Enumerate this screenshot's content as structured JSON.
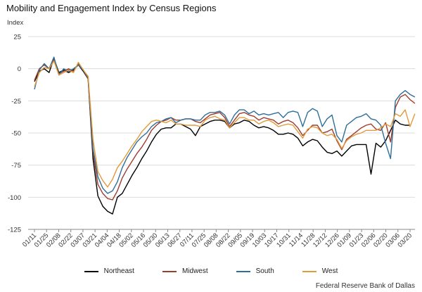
{
  "chart_data": {
    "type": "line",
    "title": "Mobility and Engagement Index by Census Regions",
    "ylabel": "Index",
    "xlabel": "",
    "ylim": [
      -125,
      25
    ],
    "yticks": [
      25,
      0,
      -25,
      -50,
      -75,
      -100,
      -125
    ],
    "grid": true,
    "legend_position": "bottom",
    "x_tick_labels": [
      "01/11",
      "01/25",
      "02/08",
      "02/22",
      "03/07",
      "03/21",
      "04/04",
      "04/18",
      "05/02",
      "05/16",
      "05/30",
      "06/13",
      "06/27",
      "07/11",
      "07/25",
      "08/08",
      "08/22",
      "09/05",
      "09/19",
      "10/03",
      "10/17",
      "10/31",
      "11/14",
      "11/28",
      "12/12",
      "12/26",
      "01/09",
      "01/23",
      "02/06",
      "02/20",
      "03/06",
      "03/20"
    ],
    "series": [
      {
        "name": "Northeast",
        "color": "#000000",
        "values": [
          -10,
          -2,
          0,
          -3,
          8,
          -3,
          -1,
          -3,
          -1,
          3,
          -2,
          -8,
          -70,
          -99,
          -107,
          -111,
          -113,
          -100,
          -97,
          -90,
          -83,
          -77,
          -70,
          -64,
          -57,
          -51,
          -47,
          -46,
          -46,
          -43,
          -43,
          -45,
          -47,
          -52,
          -45,
          -43,
          -41,
          -40,
          -40,
          -41,
          -46,
          -43,
          -42,
          -40,
          -41,
          -44,
          -46,
          -45,
          -46,
          -48,
          -51,
          -51,
          -50,
          -51,
          -54,
          -60,
          -57,
          -55,
          -56,
          -61,
          -65,
          -66,
          -64,
          -68,
          -64,
          -60,
          -59,
          -59,
          -59,
          -82,
          -58,
          -61,
          -56,
          -48,
          -40,
          -43,
          -44,
          -44
        ]
      },
      {
        "name": "Midwest",
        "color": "#9e3d2e",
        "values": [
          -9,
          0,
          3,
          0,
          7,
          -4,
          -2,
          0,
          -2,
          4,
          -1,
          -8,
          -65,
          -90,
          -97,
          -101,
          -102,
          -95,
          -85,
          -78,
          -72,
          -66,
          -61,
          -55,
          -48,
          -44,
          -41,
          -40,
          -38,
          -40,
          -40,
          -39,
          -39,
          -41,
          -42,
          -39,
          -36,
          -35,
          -34,
          -38,
          -45,
          -40,
          -35,
          -34,
          -36,
          -37,
          -40,
          -38,
          -39,
          -40,
          -43,
          -41,
          -40,
          -42,
          -46,
          -52,
          -48,
          -44,
          -44,
          -50,
          -49,
          -47,
          -56,
          -63,
          -55,
          -52,
          -49,
          -46,
          -44,
          -43,
          -47,
          -48,
          -42,
          -57,
          -30,
          -22,
          -20,
          -24,
          -27
        ]
      },
      {
        "name": "South",
        "color": "#2e6f99",
        "values": [
          -16,
          -1,
          4,
          0,
          9,
          -5,
          0,
          -2,
          0,
          3,
          -1,
          -7,
          -62,
          -84,
          -93,
          -97,
          -95,
          -88,
          -77,
          -69,
          -63,
          -57,
          -53,
          -50,
          -45,
          -42,
          -41,
          -39,
          -38,
          -42,
          -40,
          -39,
          -39,
          -40,
          -40,
          -36,
          -34,
          -34,
          -33,
          -36,
          -43,
          -36,
          -32,
          -32,
          -35,
          -33,
          -36,
          -35,
          -36,
          -35,
          -34,
          -38,
          -34,
          -33,
          -34,
          -45,
          -34,
          -31,
          -33,
          -45,
          -39,
          -36,
          -52,
          -57,
          -44,
          -41,
          -38,
          -37,
          -35,
          -39,
          -40,
          -44,
          -58,
          -70,
          -25,
          -20,
          -17,
          -20,
          -22
        ]
      },
      {
        "name": "West",
        "color": "#e39a3b",
        "values": [
          -14,
          -3,
          1,
          0,
          6,
          -5,
          -3,
          -1,
          -3,
          5,
          -1,
          -6,
          -55,
          -80,
          -87,
          -92,
          -86,
          -77,
          -72,
          -66,
          -60,
          -55,
          -49,
          -45,
          -41,
          -40,
          -41,
          -42,
          -40,
          -43,
          -43,
          -44,
          -44,
          -44,
          -45,
          -40,
          -38,
          -37,
          -39,
          -40,
          -46,
          -42,
          -38,
          -38,
          -40,
          -40,
          -43,
          -41,
          -40,
          -42,
          -45,
          -44,
          -43,
          -44,
          -49,
          -54,
          -47,
          -45,
          -46,
          -50,
          -52,
          -51,
          -55,
          -62,
          -56,
          -53,
          -51,
          -50,
          -48,
          -48,
          -48,
          -46,
          -43,
          -45,
          -35,
          -37,
          -32,
          -45,
          -35
        ]
      }
    ]
  },
  "legend": [
    {
      "name": "Northeast",
      "color": "#000000"
    },
    {
      "name": "Midwest",
      "color": "#9e3d2e"
    },
    {
      "name": "South",
      "color": "#2e6f99"
    },
    {
      "name": "West",
      "color": "#e39a3b"
    }
  ],
  "source": "Federal Reserve Bank of Dallas"
}
